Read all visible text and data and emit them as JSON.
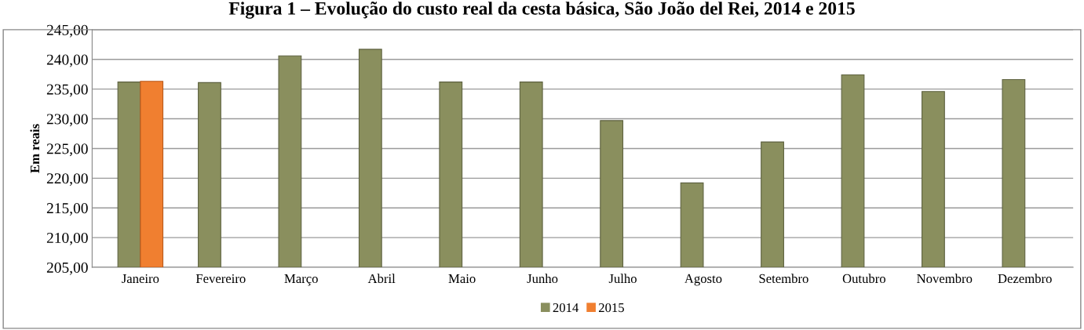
{
  "chart_data": {
    "type": "bar",
    "title": "Figura 1 – Evolução do custo real da cesta básica, São João del Rei, 2014 e 2015",
    "ylabel": "Em reais",
    "categories": [
      "Janeiro",
      "Fevereiro",
      "Março",
      "Abril",
      "Maio",
      "Junho",
      "Julho",
      "Agosto",
      "Setembro",
      "Outubro",
      "Novembro",
      "Dezembro"
    ],
    "series": [
      {
        "name": "2014",
        "color": "#8a8f5e",
        "values": [
          236.2,
          236.1,
          240.6,
          241.7,
          236.2,
          236.2,
          229.7,
          219.2,
          226.1,
          237.4,
          234.6,
          236.6
        ]
      },
      {
        "name": "2015",
        "color": "#f07f30",
        "values": [
          236.3,
          null,
          null,
          null,
          null,
          null,
          null,
          null,
          null,
          null,
          null,
          null
        ]
      }
    ],
    "ylim": [
      205,
      245
    ],
    "yticks": [
      {
        "value": 205,
        "label": "205,00"
      },
      {
        "value": 210,
        "label": "210,00"
      },
      {
        "value": 215,
        "label": "215,00"
      },
      {
        "value": 220,
        "label": "220,00"
      },
      {
        "value": 225,
        "label": "225,00"
      },
      {
        "value": 230,
        "label": "230,00"
      },
      {
        "value": 235,
        "label": "235,00"
      },
      {
        "value": 240,
        "label": "240,00"
      },
      {
        "value": 245,
        "label": "245,00"
      }
    ],
    "grid": "y",
    "legend": "bottom"
  }
}
